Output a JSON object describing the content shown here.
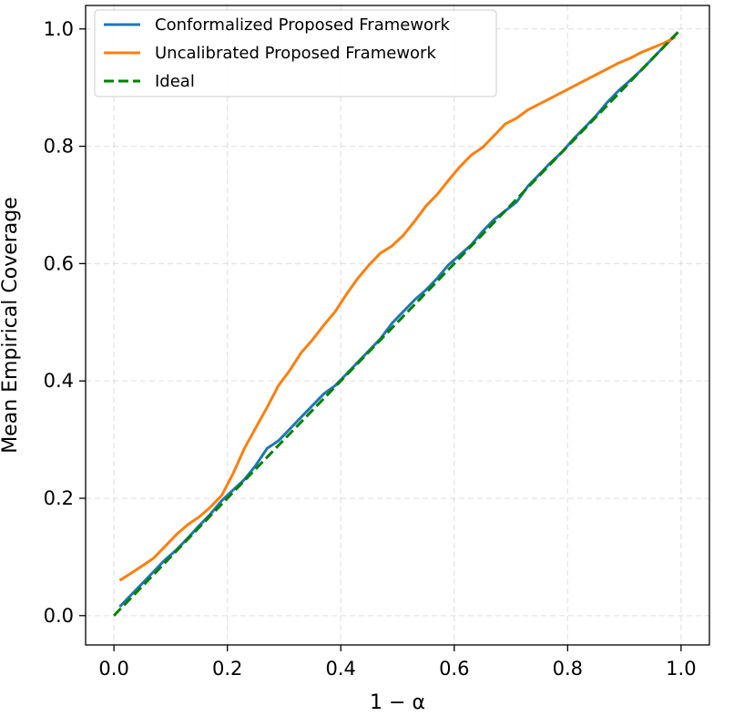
{
  "chart_data": {
    "type": "line",
    "title": "",
    "xlabel": "1 − α",
    "ylabel": "Mean Empirical Coverage",
    "xlim": [
      -0.05,
      1.05
    ],
    "ylim": [
      -0.05,
      1.04
    ],
    "xticks": [
      0.0,
      0.2,
      0.4,
      0.6,
      0.8,
      1.0
    ],
    "yticks": [
      0.0,
      0.2,
      0.4,
      0.6,
      0.8,
      1.0
    ],
    "xtick_labels": [
      "0.0",
      "0.2",
      "0.4",
      "0.6",
      "0.8",
      "1.0"
    ],
    "ytick_labels": [
      "0.0",
      "0.2",
      "0.4",
      "0.6",
      "0.8",
      "1.0"
    ],
    "grid": true,
    "legend_position": "top-left",
    "series": [
      {
        "name": "Conformalized Proposed Framework",
        "color": "#1f77b4",
        "style": "solid",
        "x": [
          0.01,
          0.03,
          0.05,
          0.07,
          0.09,
          0.11,
          0.13,
          0.15,
          0.17,
          0.19,
          0.21,
          0.23,
          0.25,
          0.27,
          0.29,
          0.31,
          0.33,
          0.35,
          0.37,
          0.39,
          0.41,
          0.43,
          0.45,
          0.47,
          0.49,
          0.51,
          0.53,
          0.55,
          0.57,
          0.59,
          0.61,
          0.63,
          0.65,
          0.67,
          0.69,
          0.71,
          0.73,
          0.75,
          0.77,
          0.79,
          0.81,
          0.83,
          0.85,
          0.87,
          0.89,
          0.91,
          0.93,
          0.95,
          0.97,
          0.99
        ],
        "y": [
          0.015,
          0.035,
          0.055,
          0.075,
          0.095,
          0.112,
          0.132,
          0.153,
          0.173,
          0.196,
          0.214,
          0.232,
          0.256,
          0.285,
          0.298,
          0.318,
          0.338,
          0.358,
          0.378,
          0.392,
          0.412,
          0.432,
          0.452,
          0.472,
          0.498,
          0.518,
          0.538,
          0.555,
          0.575,
          0.598,
          0.615,
          0.632,
          0.655,
          0.675,
          0.69,
          0.705,
          0.732,
          0.752,
          0.772,
          0.79,
          0.812,
          0.832,
          0.852,
          0.875,
          0.895,
          0.912,
          0.93,
          0.95,
          0.97,
          0.99
        ]
      },
      {
        "name": "Uncalibrated Proposed Framework",
        "color": "#ff7f0e",
        "style": "solid",
        "x": [
          0.01,
          0.03,
          0.05,
          0.07,
          0.09,
          0.11,
          0.13,
          0.15,
          0.17,
          0.19,
          0.21,
          0.23,
          0.25,
          0.27,
          0.29,
          0.31,
          0.33,
          0.35,
          0.37,
          0.39,
          0.41,
          0.43,
          0.45,
          0.47,
          0.49,
          0.51,
          0.53,
          0.55,
          0.57,
          0.59,
          0.61,
          0.63,
          0.65,
          0.67,
          0.69,
          0.71,
          0.73,
          0.75,
          0.77,
          0.79,
          0.81,
          0.83,
          0.85,
          0.87,
          0.89,
          0.91,
          0.93,
          0.95,
          0.97,
          0.99
        ],
        "y": [
          0.06,
          0.072,
          0.085,
          0.098,
          0.118,
          0.138,
          0.155,
          0.168,
          0.185,
          0.205,
          0.242,
          0.285,
          0.32,
          0.355,
          0.392,
          0.418,
          0.448,
          0.47,
          0.495,
          0.518,
          0.548,
          0.575,
          0.598,
          0.618,
          0.63,
          0.648,
          0.672,
          0.698,
          0.718,
          0.742,
          0.765,
          0.785,
          0.798,
          0.818,
          0.838,
          0.848,
          0.862,
          0.872,
          0.882,
          0.892,
          0.902,
          0.912,
          0.922,
          0.932,
          0.942,
          0.95,
          0.96,
          0.968,
          0.976,
          0.986
        ]
      },
      {
        "name": "Ideal",
        "color": "#008000",
        "style": "dashed",
        "x": [
          0.0,
          1.0
        ],
        "y": [
          0.0,
          1.0
        ]
      }
    ]
  }
}
